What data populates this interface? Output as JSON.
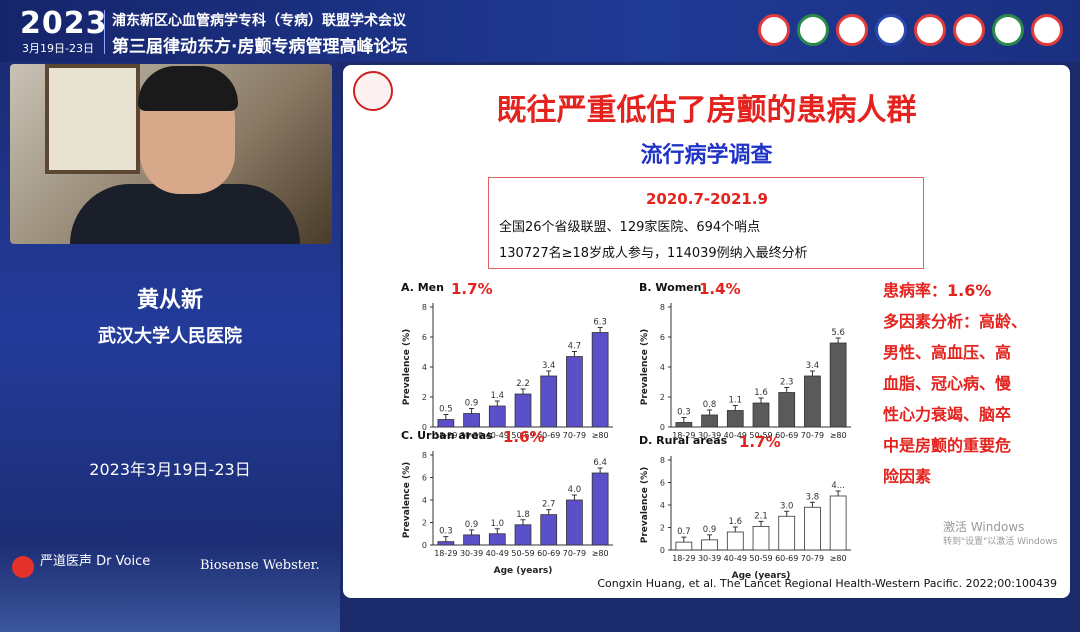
{
  "header": {
    "year": "2023",
    "date_range": "3月19日-23日",
    "conference_line1": "浦东新区心血管病学专科（专病）联盟学术会议",
    "conference_line2": "第三届律动东方·房颤专病管理高峰论坛"
  },
  "speaker": {
    "name": "黄从新",
    "organization": "武汉大学人民医院",
    "event_date": "2023年3月19日-23日"
  },
  "branding": {
    "left": "严道医声 Dr Voice",
    "right": "Biosense Webster."
  },
  "slide": {
    "title": "既往严重低估了房颤的患病人群",
    "subtitle": "流行病学调查",
    "info_period": "2020.7-2021.9",
    "info_line1": "全国26个省级联盟、129家医院、694个哨点",
    "info_line2": "130727名≥18岁成人参与，114039例纳入最终分析",
    "right_note": [
      "患病率：1.6%",
      "多因素分析：高龄、",
      "男性、高血压、高",
      "血脂、冠心病、慢",
      "性心力衰竭、脑卒",
      "中是房颤的重要危",
      "险因素"
    ],
    "citation": "Congxin Huang, et al. The Lancet Regional Health-Western Pacific. 2022;00:100439",
    "os_watermark_1": "激活 Windows",
    "os_watermark_2": "转到\"设置\"以激活 Windows"
  },
  "chart_data": [
    {
      "type": "bar",
      "title": "A. Men",
      "headline": "1.7%",
      "categories": [
        "18-29",
        "30-39",
        "40-49",
        "50-59",
        "60-69",
        "70-79",
        "≥80"
      ],
      "values": [
        0.5,
        0.9,
        1.4,
        2.2,
        3.4,
        4.7,
        6.3
      ],
      "value_labels": [
        "0.5",
        "0.9",
        "1.4",
        "2.2",
        "3.4",
        "4.7",
        "6.3"
      ],
      "ylabel": "Prevalence (%)",
      "xlabel": "",
      "yticks": [
        0,
        2,
        4,
        6,
        8
      ],
      "ylim": [
        0,
        8
      ],
      "bar_color": "#5b50c8"
    },
    {
      "type": "bar",
      "title": "B. Women",
      "headline": "1.4%",
      "categories": [
        "18-29",
        "30-39",
        "40-49",
        "50-59",
        "60-69",
        "70-79",
        "≥80"
      ],
      "values": [
        0.3,
        0.8,
        1.1,
        1.6,
        2.3,
        3.4,
        5.6
      ],
      "value_labels": [
        "0.3",
        "0.8",
        "1.1",
        "1.6",
        "2.3",
        "3.4",
        "5.6"
      ],
      "ylabel": "Prevalence (%)",
      "xlabel": "",
      "yticks": [
        0,
        2,
        4,
        6,
        8
      ],
      "ylim": [
        0,
        8
      ],
      "bar_color": "#5a5a5a"
    },
    {
      "type": "bar",
      "title": "C. Urban areas",
      "headline": "1.6%",
      "categories": [
        "18-29",
        "30-39",
        "40-49",
        "50-59",
        "60-69",
        "70-79",
        "≥80"
      ],
      "values": [
        0.3,
        0.9,
        1.0,
        1.8,
        2.7,
        4.0,
        6.4
      ],
      "value_labels": [
        "0.3",
        "0.9",
        "1.0",
        "1.8",
        "2.7",
        "4.0",
        "6.4"
      ],
      "ylabel": "Prevalence (%)",
      "xlabel": "Age (years)",
      "yticks": [
        0,
        2,
        4,
        6,
        8
      ],
      "ylim": [
        0,
        8
      ],
      "bar_color": "#5b50c8"
    },
    {
      "type": "bar",
      "title": "D. Rural areas",
      "headline": "1.7%",
      "categories": [
        "18-29",
        "30-39",
        "40-49",
        "50-59",
        "60-69",
        "70-79",
        "≥80"
      ],
      "values": [
        0.7,
        0.9,
        1.6,
        2.1,
        3.0,
        3.8,
        4.8
      ],
      "value_labels": [
        "0.7",
        "0.9",
        "1.6",
        "2.1",
        "3.0",
        "3.8",
        "4..."
      ],
      "ylabel": "Prevalence (%)",
      "xlabel": "Age (years)",
      "yticks": [
        0,
        2,
        4,
        6,
        8
      ],
      "ylim": [
        0,
        8
      ],
      "bar_color": "#ffffff"
    }
  ],
  "colors": {
    "accent_red": "#e4231e",
    "accent_blue": "#2034c8",
    "background": "#1b2a6b"
  }
}
